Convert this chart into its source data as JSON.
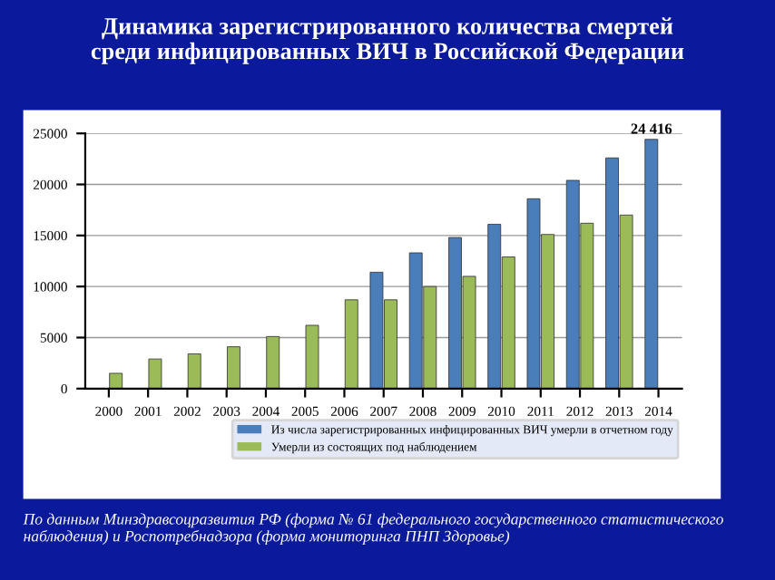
{
  "chart_data": {
    "type": "bar",
    "title": "Динамика зарегистрированного количества смертей\nсреди инфицированных ВИЧ в Российской Федерации",
    "categories": [
      "2000",
      "2001",
      "2002",
      "2003",
      "2004",
      "2005",
      "2006",
      "2007",
      "2008",
      "2009",
      "2010",
      "2011",
      "2012",
      "2013",
      "2014"
    ],
    "series": [
      {
        "name": "Из числа зарегистрированных инфицированных ВИЧ умерли в отчетном году",
        "color": "#4a7ebb",
        "values": [
          null,
          null,
          null,
          null,
          null,
          null,
          null,
          11400,
          13300,
          14800,
          16100,
          18600,
          20400,
          22600,
          24416
        ],
        "value_labels": [
          null,
          null,
          null,
          null,
          null,
          null,
          null,
          null,
          null,
          null,
          null,
          null,
          null,
          null,
          "24 416"
        ]
      },
      {
        "name": "Умерли из состоящих под наблюдением",
        "color": "#9bbb59",
        "values": [
          1500,
          2900,
          3400,
          4100,
          5100,
          6200,
          8700,
          8700,
          10000,
          11000,
          12900,
          15100,
          16200,
          17000,
          null
        ]
      }
    ],
    "ylim": [
      0,
      25000
    ],
    "yticks": [
      0,
      5000,
      10000,
      15000,
      20000,
      25000
    ],
    "grid": "y",
    "legend": "bottom right",
    "annotations": [
      "По данным Минздравсоцразвития РФ (форма № 61 федерального государственного статистического наблюдения) и Роспотребнадзора (форма мониторинга ПНП Здоровье)"
    ]
  }
}
